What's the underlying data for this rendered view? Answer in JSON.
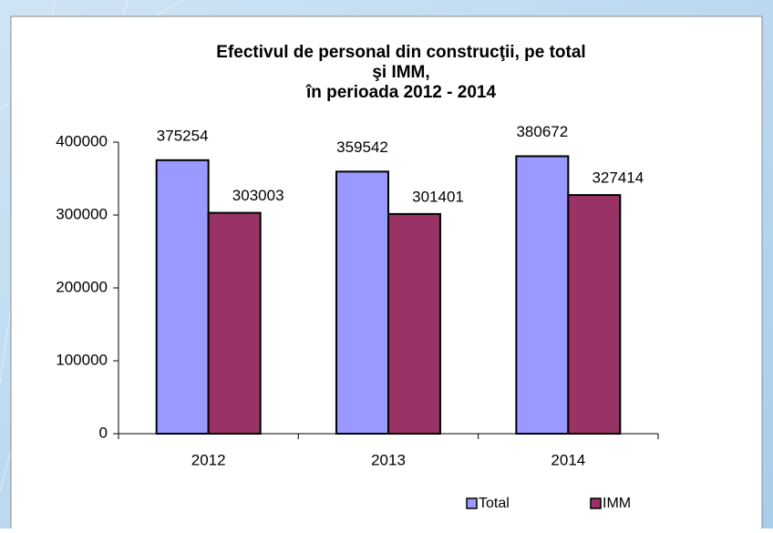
{
  "chart_data": {
    "type": "bar",
    "title": [
      "Efectivul de personal din construcţii, pe total",
      "şi IMM,",
      "în perioada 2012 - 2014"
    ],
    "categories": [
      "2012",
      "2013",
      "2014"
    ],
    "series": [
      {
        "name": "Total",
        "color": "#9999ff",
        "values": [
          375254,
          359542,
          380672
        ]
      },
      {
        "name": "IMM",
        "color": "#993366",
        "values": [
          303003,
          301401,
          327414
        ]
      }
    ],
    "ylim": [
      0,
      400000
    ],
    "yticks": [
      0,
      100000,
      200000,
      300000,
      400000
    ],
    "grid": false,
    "legend": "bottom"
  }
}
